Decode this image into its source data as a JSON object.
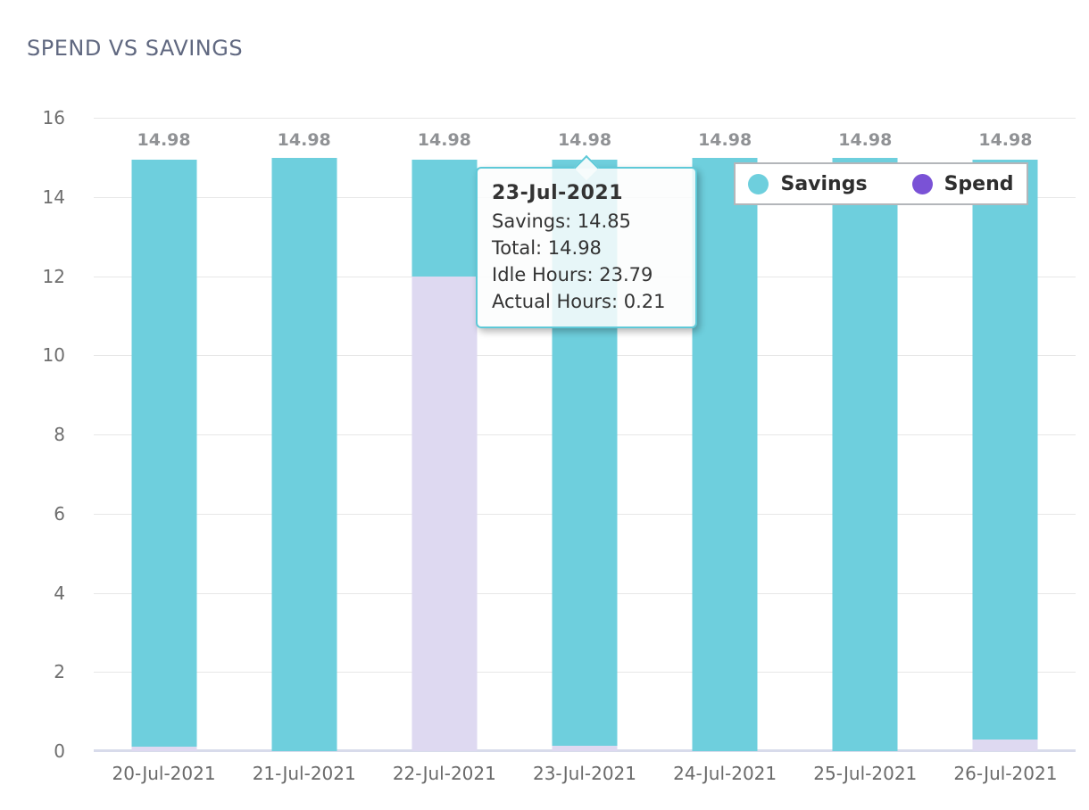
{
  "title": "SPEND VS SAVINGS",
  "chart_data": {
    "type": "bar",
    "stacked": true,
    "title": "SPEND VS SAVINGS",
    "categories": [
      "20-Jul-2021",
      "21-Jul-2021",
      "22-Jul-2021",
      "23-Jul-2021",
      "24-Jul-2021",
      "25-Jul-2021",
      "26-Jul-2021"
    ],
    "series": [
      {
        "name": "Spend",
        "values": [
          0.12,
          0,
          12.0,
          0.13,
          0,
          0,
          0.3
        ],
        "legend_color": "#7a52d6",
        "bar_color": "#ded9f1"
      },
      {
        "name": "Savings",
        "values": [
          14.86,
          14.98,
          2.98,
          14.85,
          14.98,
          14.98,
          14.68
        ],
        "legend_color": "#6ecfdd",
        "bar_color": "#6ecfdd"
      }
    ],
    "bar_labels": [
      "14.98",
      "14.98",
      "14.98",
      "14.98",
      "14.98",
      "14.98",
      "14.98"
    ],
    "ylim": [
      0,
      16
    ],
    "yticks": [
      0,
      2,
      4,
      6,
      8,
      10,
      12,
      14,
      16
    ],
    "grid": "horizontal",
    "legend_position": "top-right",
    "xlabel": "",
    "ylabel": ""
  },
  "legend": {
    "items": [
      {
        "label": "Savings",
        "color": "#6ecfdd"
      },
      {
        "label": "Spend",
        "color": "#7a52d6"
      }
    ]
  },
  "tooltip": {
    "title": "23-Jul-2021",
    "lines": [
      "Savings: 14.85",
      "Total: 14.98",
      "Idle Hours: 23.79",
      "Actual Hours: 0.21"
    ]
  },
  "colors": {
    "savings_bar": "#6ecfdd",
    "spend_bar_rendered": "#ded9f1",
    "spend_legend": "#7a52d6",
    "title_text": "#606880",
    "gridline": "#e7e7e7",
    "axis_line": "#d8dbeb",
    "tooltip_border": "#5ec9d8"
  }
}
